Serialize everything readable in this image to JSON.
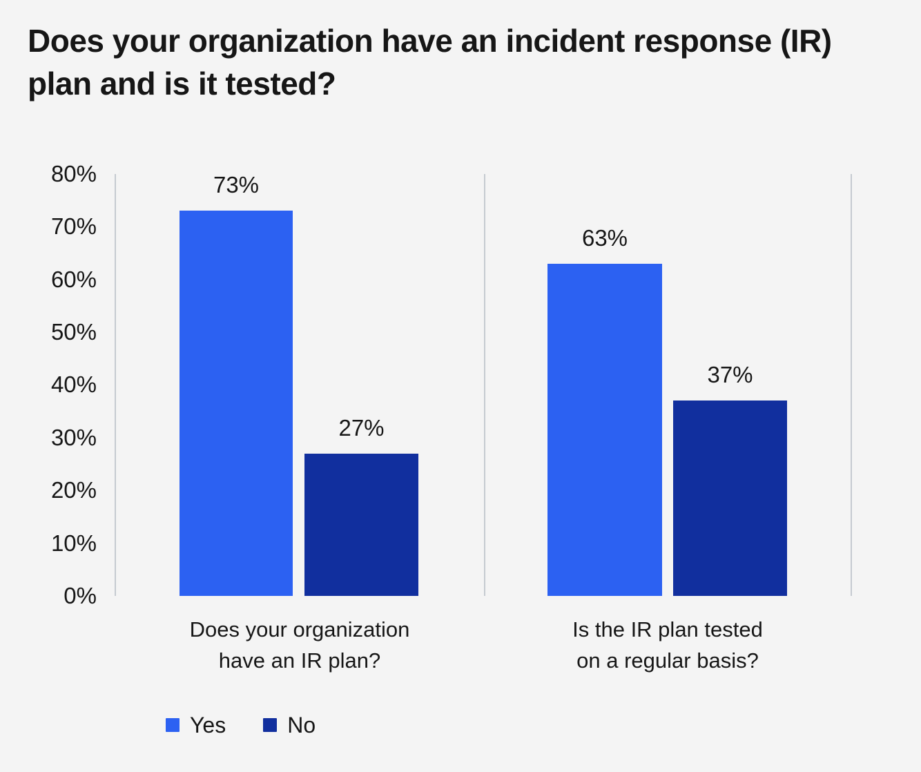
{
  "header": {
    "title_line1": "Does your organization have an incident response (IR)",
    "title_line2": "plan and is it tested?"
  },
  "chart_data": {
    "type": "bar",
    "title": "Does your organization have an incident response (IR) plan and is it tested?",
    "categories": [
      "Does your organization have an IR plan?",
      "Is the IR plan tested on a regular basis?"
    ],
    "categories_display": [
      {
        "line1": "Does your organization",
        "line2": "have an IR plan?"
      },
      {
        "line1": "Is the IR plan tested",
        "line2": "on a regular basis?"
      }
    ],
    "series": [
      {
        "name": "Yes",
        "color": "#2c61f2",
        "values": [
          73,
          63
        ]
      },
      {
        "name": "No",
        "color": "#112f9e",
        "values": [
          27,
          37
        ]
      }
    ],
    "value_labels": [
      [
        "73%",
        "27%"
      ],
      [
        "63%",
        "37%"
      ]
    ],
    "y_ticks": [
      "80%",
      "70%",
      "60%",
      "50%",
      "40%",
      "30%",
      "20%",
      "10%",
      "0%"
    ],
    "ylim": [
      0,
      80
    ],
    "xlabel": "",
    "ylabel": "",
    "grid": false,
    "legend_position": "bottom",
    "colors": {
      "background": "#f4f4f4",
      "text": "#161616",
      "axis_line": "#c5cad0",
      "yes_bar": "#2c61f2",
      "no_bar": "#112f9e"
    }
  }
}
